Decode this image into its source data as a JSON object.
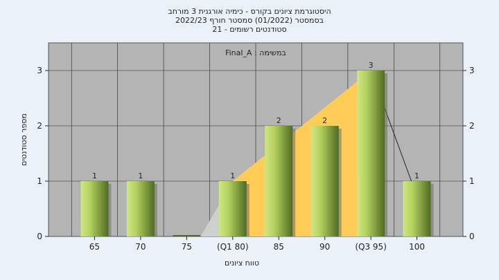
{
  "header": {
    "line1": "היסטוגרמת ציונים בקורס - כימיה אורגנית 3 מורחב",
    "line2": "בסמסטר (01/2022) סמסטר חורף 2022/23",
    "line3": "סטודנטים רשומים - 21"
  },
  "chart_data": {
    "type": "bar",
    "title": "היסטוגרמת ציונים בקורס - כימיה אורגנית 3 מורחב",
    "annotation": "במשימה : Final_A",
    "xlabel": "טווח ציונים",
    "ylabel": "מספר סטודנטים",
    "categories": [
      "65",
      "70",
      "75",
      "(Q1 80)",
      "85",
      "90",
      "(Q3 95)",
      "100"
    ],
    "values": [
      1,
      1,
      0,
      1,
      2,
      2,
      3,
      1
    ],
    "data_labels": [
      "1",
      "1",
      "",
      "1",
      "2",
      "2",
      "3",
      "1"
    ],
    "ylim": [
      0,
      3.5
    ],
    "yticks": [
      0,
      1,
      2,
      3
    ],
    "grid": true,
    "box_plot_region": {
      "q1_category": "(Q1 80)",
      "q3_category": "(Q3 95)",
      "fill_color": "#ffcc55",
      "shadow_color": "#cfcfcf"
    },
    "colors": {
      "plot_bg": "#b4b4b4",
      "bar_light": "#c8e27a",
      "bar_dark": "#4f6b22",
      "gridline": "#ffffff"
    }
  }
}
